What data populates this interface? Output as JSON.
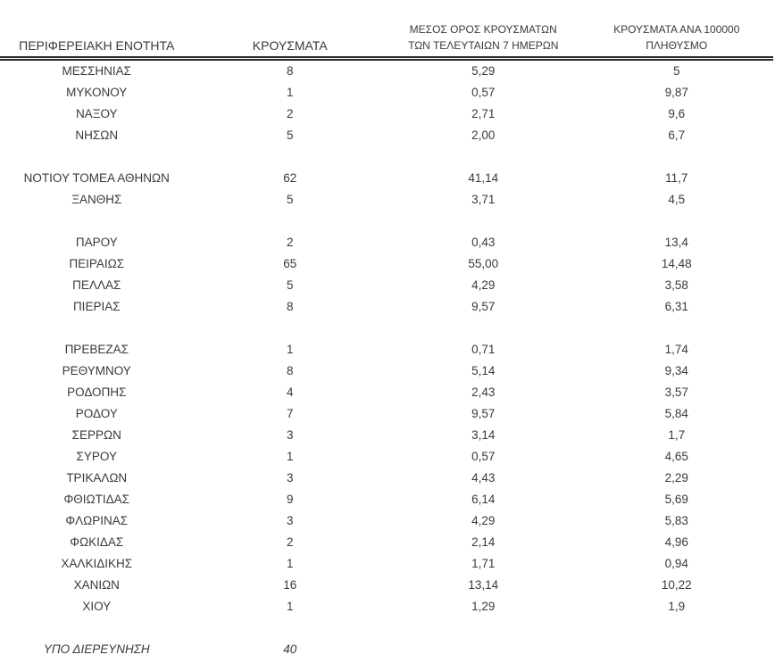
{
  "page": {
    "background": "#ffffff",
    "text_color": "#3a3a3a",
    "rule_color": "#2a2a2a"
  },
  "table": {
    "columns": [
      {
        "id": "region",
        "label": "ΠΕΡΙΦΕΡΕΙΑΚΗ ΕΝΟΤΗΤΑ"
      },
      {
        "id": "cases",
        "label": "ΚΡΟΥΣΜΑΤΑ"
      },
      {
        "id": "avg7",
        "label": "ΜΕΣΟΣ ΟΡΟΣ ΚΡΟΥΣΜΑΤΩΝ\nΤΩΝ ΤΕΛΕΥΤΑΙΩΝ 7 ΗΜΕΡΩΝ"
      },
      {
        "id": "per100k",
        "label": "ΚΡΟΥΣΜΑΤΑ ΑΝΑ 100000\nΠΛΗΘΥΣΜΟ"
      }
    ],
    "groups": [
      [
        {
          "region": "ΜΕΣΣΗΝΙΑΣ",
          "cases": "8",
          "avg7": "5,29",
          "per100k": "5"
        },
        {
          "region": "ΜΥΚΟΝΟΥ",
          "cases": "1",
          "avg7": "0,57",
          "per100k": "9,87"
        },
        {
          "region": "ΝΑΞΟΥ",
          "cases": "2",
          "avg7": "2,71",
          "per100k": "9,6"
        },
        {
          "region": "ΝΗΣΩΝ",
          "cases": "5",
          "avg7": "2,00",
          "per100k": "6,7"
        }
      ],
      [
        {
          "region": "ΝΟΤΙΟΥ ΤΟΜΕΑ ΑΘΗΝΩΝ",
          "cases": "62",
          "avg7": "41,14",
          "per100k": "11,7"
        },
        {
          "region": "ΞΑΝΘΗΣ",
          "cases": "5",
          "avg7": "3,71",
          "per100k": "4,5"
        }
      ],
      [
        {
          "region": "ΠΑΡΟΥ",
          "cases": "2",
          "avg7": "0,43",
          "per100k": "13,4"
        },
        {
          "region": "ΠΕΙΡΑΙΩΣ",
          "cases": "65",
          "avg7": "55,00",
          "per100k": "14,48"
        },
        {
          "region": "ΠΕΛΛΑΣ",
          "cases": "5",
          "avg7": "4,29",
          "per100k": "3,58"
        },
        {
          "region": "ΠΙΕΡΙΑΣ",
          "cases": "8",
          "avg7": "9,57",
          "per100k": "6,31"
        }
      ],
      [
        {
          "region": "ΠΡΕΒΕΖΑΣ",
          "cases": "1",
          "avg7": "0,71",
          "per100k": "1,74"
        },
        {
          "region": "ΡΕΘΥΜΝΟΥ",
          "cases": "8",
          "avg7": "5,14",
          "per100k": "9,34"
        },
        {
          "region": "ΡΟΔΟΠΗΣ",
          "cases": "4",
          "avg7": "2,43",
          "per100k": "3,57"
        },
        {
          "region": "ΡΟΔΟΥ",
          "cases": "7",
          "avg7": "9,57",
          "per100k": "5,84"
        },
        {
          "region": "ΣΕΡΡΩΝ",
          "cases": "3",
          "avg7": "3,14",
          "per100k": "1,7"
        },
        {
          "region": "ΣΥΡΟΥ",
          "cases": "1",
          "avg7": "0,57",
          "per100k": "4,65"
        },
        {
          "region": "ΤΡΙΚΑΛΩΝ",
          "cases": "3",
          "avg7": "4,43",
          "per100k": "2,29"
        },
        {
          "region": "ΦΘΙΩΤΙΔΑΣ",
          "cases": "9",
          "avg7": "6,14",
          "per100k": "5,69"
        },
        {
          "region": "ΦΛΩΡΙΝΑΣ",
          "cases": "3",
          "avg7": "4,29",
          "per100k": "5,83"
        },
        {
          "region": "ΦΩΚΙΔΑΣ",
          "cases": "2",
          "avg7": "2,14",
          "per100k": "4,96"
        },
        {
          "region": "ΧΑΛΚΙΔΙΚΗΣ",
          "cases": "1",
          "avg7": "1,71",
          "per100k": "0,94"
        },
        {
          "region": "ΧΑΝΙΩΝ",
          "cases": "16",
          "avg7": "13,14",
          "per100k": "10,22"
        },
        {
          "region": "ΧΙΟΥ",
          "cases": "1",
          "avg7": "1,29",
          "per100k": "1,9"
        }
      ]
    ],
    "footer": {
      "label": "ΥΠΟ ΔΙΕΡΕΥΝΗΣΗ",
      "cases": "40",
      "avg7": "",
      "per100k": ""
    }
  }
}
